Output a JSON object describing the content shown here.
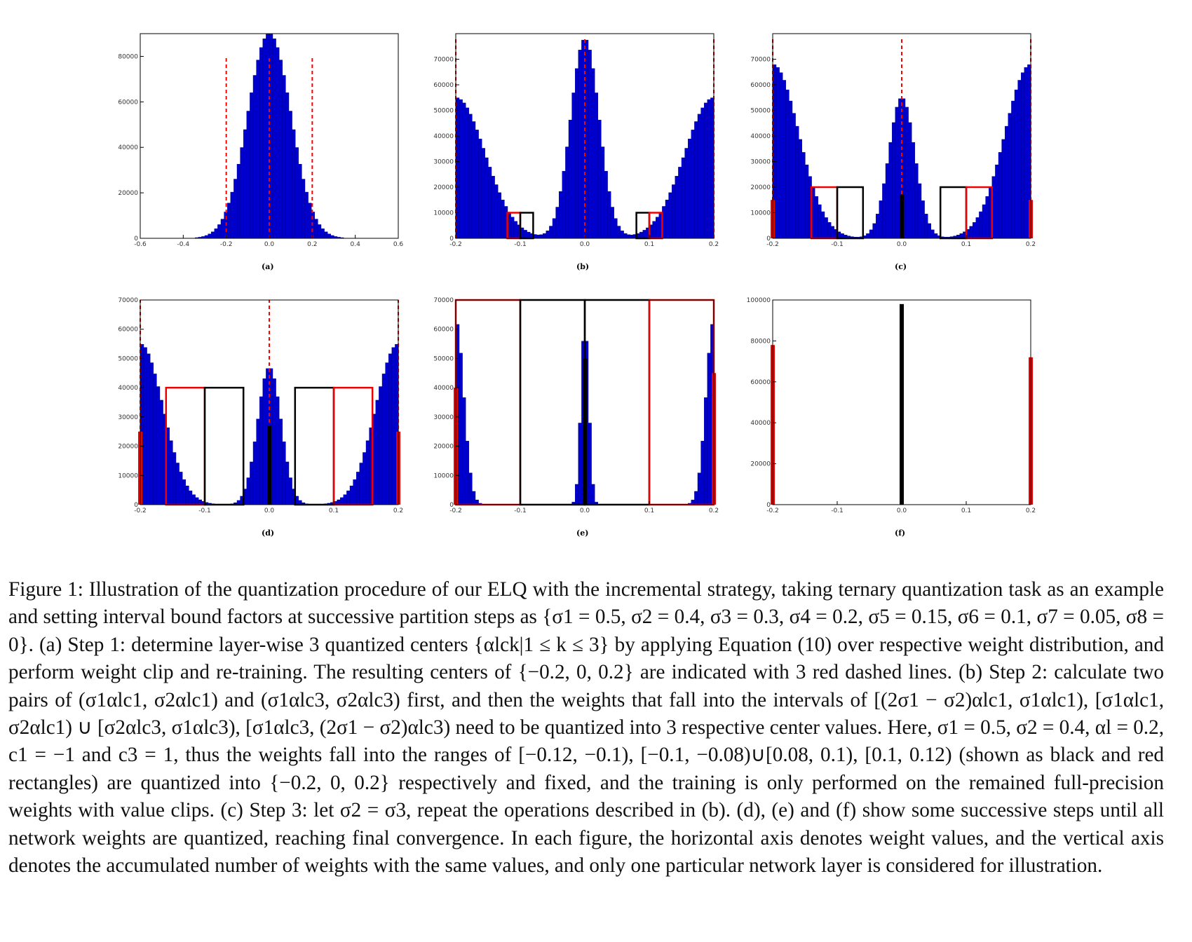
{
  "figure": {
    "panel_labels": [
      "(a)",
      "(b)",
      "(c)",
      "(d)",
      "(e)",
      "(f)"
    ],
    "caption": "Figure 1: Illustration of the quantization procedure of our ELQ with the incremental strategy, taking ternary quantization task as an example and setting interval bound factors at successive partition steps as {σ1 = 0.5, σ2 = 0.4, σ3 = 0.3, σ4 = 0.2, σ5 = 0.15, σ6 = 0.1, σ7 = 0.05, σ8 = 0}. (a) Step 1: determine layer-wise 3 quantized centers {αlck|1 ≤ k ≤ 3} by applying Equation (10) over respective weight distribution, and perform weight clip and re-training. The resulting centers of {−0.2, 0, 0.2} are indicated with 3 red dashed lines. (b) Step 2: calculate two pairs of (σ1αlc1, σ2αlc1) and (σ1αlc3, σ2αlc3) first, and then the weights that fall into the intervals of [(2σ1 − σ2)αlc1, σ1αlc1), [σ1αlc1, σ2αlc1) ∪ [σ2αlc3, σ1αlc3), [σ1αlc3, (2σ1 − σ2)αlc3) need to be quantized into 3 respective center values. Here, σ1 = 0.5, σ2 = 0.4, αl = 0.2, c1 = −1 and c3 = 1, thus the weights fall into the ranges of [−0.12, −0.1), [−0.1, −0.08)∪[0.08, 0.1), [0.1, 0.12) (shown as black and red rectangles) are quantized into {−0.2, 0, 0.2} respectively and fixed, and the training is only performed on the remained full-precision weights with value clips. (c) Step 3: let σ2 = σ3, repeat the operations described in (b). (d), (e) and (f) show some successive steps until all network weights are quantized, reaching final convergence. In each figure, the horizontal axis denotes weight values, and the vertical axis denotes the accumulated number of weights with the same values, and only one particular network layer is considered for illustration."
  },
  "colors": {
    "bars": "#0000cc",
    "dashed": "#ff0000",
    "rect_red": "#ee0000",
    "rect_black": "#000000"
  },
  "chart_data": [
    {
      "id": "a",
      "type": "bar",
      "xlim": [
        -0.6,
        0.6
      ],
      "ylim": [
        0,
        90000
      ],
      "xticks": [
        "-0.6",
        "-0.4",
        "-0.2",
        "0.0",
        "0.2",
        "0.4",
        "0.6"
      ],
      "xtick_values": [
        -0.6,
        -0.4,
        -0.2,
        0.0,
        0.2,
        0.4,
        0.6
      ],
      "yticks": [
        "0",
        "20000",
        "40000",
        "60000",
        "80000"
      ],
      "ytick_values": [
        0,
        20000,
        40000,
        60000,
        80000
      ],
      "distribution": {
        "kind": "gaussian",
        "center": 0.0,
        "sd": 0.1,
        "peak": 90000,
        "xmin": -0.5,
        "xmax": 0.5
      },
      "dashed_lines": [
        {
          "x": -0.2,
          "top": 80000
        },
        {
          "x": 0.0,
          "top": 80000
        },
        {
          "x": 0.2,
          "top": 80000
        }
      ],
      "rects": [],
      "spikes": []
    },
    {
      "id": "b",
      "type": "bar",
      "xlim": [
        -0.2,
        0.2
      ],
      "ylim": [
        0,
        80000
      ],
      "xticks": [
        "-0.2",
        "-0.1",
        "0.0",
        "0.1",
        "0.2"
      ],
      "xtick_values": [
        -0.2,
        -0.1,
        0.0,
        0.1,
        0.2
      ],
      "yticks": [
        "0",
        "10000",
        "20000",
        "30000",
        "40000",
        "50000",
        "60000",
        "70000"
      ],
      "ytick_values": [
        0,
        10000,
        20000,
        30000,
        40000,
        50000,
        60000,
        70000
      ],
      "distribution": {
        "kind": "trimodal",
        "center_peak": 78000,
        "center_sd": 0.022,
        "edge_peak": 55000,
        "edge_sd": 0.045
      },
      "dashed_lines": [
        {
          "x": -0.2,
          "top": 78000
        },
        {
          "x": 0.0,
          "top": 78000
        },
        {
          "x": 0.2,
          "top": 78000
        }
      ],
      "rects": [
        {
          "x0": -0.12,
          "x1": -0.1,
          "h": 10000,
          "color": "red"
        },
        {
          "x0": -0.1,
          "x1": -0.08,
          "h": 10000,
          "color": "black"
        },
        {
          "x0": 0.08,
          "x1": 0.1,
          "h": 10000,
          "color": "black"
        },
        {
          "x0": 0.1,
          "x1": 0.12,
          "h": 10000,
          "color": "red"
        }
      ],
      "spikes": []
    },
    {
      "id": "c",
      "type": "bar",
      "xlim": [
        -0.2,
        0.2
      ],
      "ylim": [
        0,
        80000
      ],
      "xticks": [
        "-0.2",
        "-0.1",
        "0.0",
        "0.1",
        "0.2"
      ],
      "xtick_values": [
        -0.2,
        -0.1,
        0.0,
        0.1,
        0.2
      ],
      "yticks": [
        "0",
        "10000",
        "20000",
        "30000",
        "40000",
        "50000",
        "60000",
        "70000"
      ],
      "ytick_values": [
        0,
        10000,
        20000,
        30000,
        40000,
        50000,
        60000,
        70000
      ],
      "distribution": {
        "kind": "trimodal",
        "center_peak": 55000,
        "center_sd": 0.02,
        "edge_peak": 68000,
        "edge_sd": 0.04
      },
      "dashed_lines": [
        {
          "x": -0.2,
          "top": 78000
        },
        {
          "x": 0.0,
          "top": 78000
        },
        {
          "x": 0.2,
          "top": 78000
        }
      ],
      "rects": [
        {
          "x0": -0.14,
          "x1": -0.1,
          "h": 20000,
          "color": "red"
        },
        {
          "x0": -0.1,
          "x1": -0.06,
          "h": 20000,
          "color": "black"
        },
        {
          "x0": 0.06,
          "x1": 0.1,
          "h": 20000,
          "color": "black"
        },
        {
          "x0": 0.1,
          "x1": 0.14,
          "h": 20000,
          "color": "red"
        }
      ],
      "spikes": [
        {
          "x": -0.2,
          "h": 15000,
          "color": "red"
        },
        {
          "x": 0.0,
          "h": 17000,
          "color": "black"
        },
        {
          "x": 0.2,
          "h": 15000,
          "color": "red"
        }
      ]
    },
    {
      "id": "d",
      "type": "bar",
      "xlim": [
        -0.2,
        0.2
      ],
      "ylim": [
        0,
        70000
      ],
      "xticks": [
        "-0.2",
        "-0.1",
        "0.0",
        "0.1",
        "0.2"
      ],
      "xtick_values": [
        -0.2,
        -0.1,
        0.0,
        0.1,
        0.2
      ],
      "yticks": [
        "0",
        "10000",
        "20000",
        "30000",
        "40000",
        "50000",
        "60000",
        "70000"
      ],
      "ytick_values": [
        0,
        10000,
        20000,
        30000,
        40000,
        50000,
        60000,
        70000
      ],
      "distribution": {
        "kind": "trimodal",
        "center_peak": 47000,
        "center_sd": 0.018,
        "edge_peak": 55000,
        "edge_sd": 0.035
      },
      "dashed_lines": [
        {
          "x": -0.2,
          "top": 70000
        },
        {
          "x": 0.0,
          "top": 70000
        },
        {
          "x": 0.2,
          "top": 70000
        }
      ],
      "rects": [
        {
          "x0": -0.16,
          "x1": -0.1,
          "h": 40000,
          "color": "red"
        },
        {
          "x0": -0.1,
          "x1": -0.04,
          "h": 40000,
          "color": "black"
        },
        {
          "x0": 0.04,
          "x1": 0.1,
          "h": 40000,
          "color": "black"
        },
        {
          "x0": 0.1,
          "x1": 0.16,
          "h": 40000,
          "color": "red"
        }
      ],
      "spikes": [
        {
          "x": -0.2,
          "h": 25000,
          "color": "red"
        },
        {
          "x": 0.0,
          "h": 27000,
          "color": "black"
        },
        {
          "x": 0.2,
          "h": 25000,
          "color": "red"
        }
      ]
    },
    {
      "id": "e",
      "type": "bar",
      "xlim": [
        -0.2,
        0.2
      ],
      "ylim": [
        0,
        70000
      ],
      "xticks": [
        "-0.2",
        "-0.1",
        "0.0",
        "0.1",
        "0.2"
      ],
      "xtick_values": [
        -0.2,
        -0.1,
        0.0,
        0.1,
        0.2
      ],
      "yticks": [
        "0",
        "10000",
        "20000",
        "30000",
        "40000",
        "50000",
        "60000",
        "70000"
      ],
      "ytick_values": [
        0,
        10000,
        20000,
        30000,
        40000,
        50000,
        60000,
        70000
      ],
      "distribution": {
        "kind": "trimodal",
        "center_peak": 61000,
        "center_sd": 0.006,
        "edge_peak": 63000,
        "edge_sd": 0.012
      },
      "dashed_lines": [
        {
          "x": -0.2,
          "top": 70000
        },
        {
          "x": 0.0,
          "top": 70000
        },
        {
          "x": 0.2,
          "top": 70000
        }
      ],
      "rects": [
        {
          "x0": -0.2,
          "x1": -0.1,
          "h": 70000,
          "color": "red"
        },
        {
          "x0": -0.1,
          "x1": 0.0,
          "h": 70000,
          "color": "black"
        },
        {
          "x0": 0.0,
          "x1": 0.1,
          "h": 70000,
          "color": "black"
        },
        {
          "x0": 0.1,
          "x1": 0.2,
          "h": 70000,
          "color": "red"
        }
      ],
      "spikes": [
        {
          "x": -0.2,
          "h": 40000,
          "color": "red"
        },
        {
          "x": 0.0,
          "h": 50000,
          "color": "black"
        },
        {
          "x": 0.2,
          "h": 45000,
          "color": "red"
        }
      ]
    },
    {
      "id": "f",
      "type": "bar",
      "xlim": [
        -0.2,
        0.2
      ],
      "ylim": [
        0,
        100000
      ],
      "xticks": [
        "-0.2",
        "-0.1",
        "0.0",
        "0.1",
        "0.2"
      ],
      "xtick_values": [
        -0.2,
        -0.1,
        0.0,
        0.1,
        0.2
      ],
      "yticks": [
        "0",
        "20000",
        "40000",
        "60000",
        "80000",
        "100000"
      ],
      "ytick_values": [
        0,
        20000,
        40000,
        60000,
        80000,
        100000
      ],
      "distribution": null,
      "dashed_lines": [],
      "rects": [],
      "spikes": [
        {
          "x": -0.2,
          "h": 78000,
          "color": "red"
        },
        {
          "x": 0.0,
          "h": 98000,
          "color": "black"
        },
        {
          "x": 0.2,
          "h": 72000,
          "color": "red"
        }
      ]
    }
  ]
}
